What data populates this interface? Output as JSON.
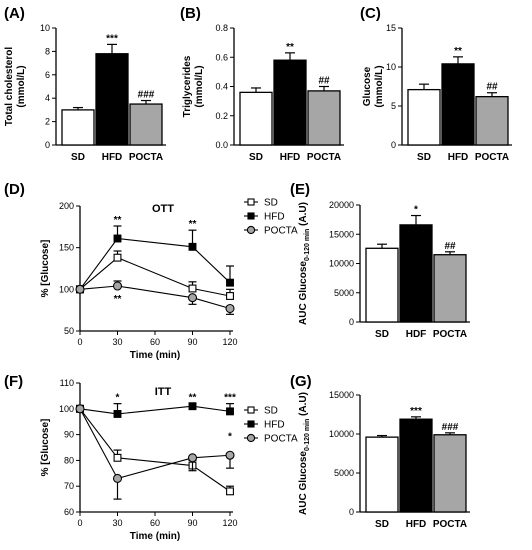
{
  "colors": {
    "SD": "#ffffff",
    "HFD": "#000000",
    "POCTA": "#a6a6a6",
    "axis": "#000000"
  },
  "chart_data": [
    {
      "panel": "(A)",
      "type": "bar",
      "ylabel": "Total cholesterol\n(mmol/L)",
      "categories": [
        "SD",
        "HFD",
        "POCTA"
      ],
      "values": [
        3.0,
        7.8,
        3.5
      ],
      "errors": [
        0.2,
        0.8,
        0.3
      ],
      "ylim": [
        0,
        10
      ],
      "yticks": [
        "0",
        "2",
        "4",
        "6",
        "8",
        "10"
      ],
      "significance": [
        "",
        "***",
        "###"
      ]
    },
    {
      "panel": "(B)",
      "type": "bar",
      "ylabel": "Triglycerides\n(mmol/L)",
      "categories": [
        "SD",
        "HFD",
        "POCTA"
      ],
      "values": [
        0.36,
        0.58,
        0.37
      ],
      "errors": [
        0.03,
        0.05,
        0.03
      ],
      "ylim": [
        0,
        0.8
      ],
      "yticks": [
        "0.0",
        "0.2",
        "0.4",
        "0.6",
        "0.8"
      ],
      "significance": [
        "",
        "**",
        "##"
      ]
    },
    {
      "panel": "(C)",
      "type": "bar",
      "ylabel": "Glucose\n(mmol/L)",
      "categories": [
        "SD",
        "HFD",
        "POCTA"
      ],
      "values": [
        7.1,
        10.4,
        6.2
      ],
      "errors": [
        0.7,
        0.9,
        0.5
      ],
      "ylim": [
        0,
        15
      ],
      "yticks": [
        "0",
        "5",
        "10",
        "15"
      ],
      "significance": [
        "",
        "**",
        "##"
      ]
    },
    {
      "panel": "(D)",
      "type": "line",
      "title": "OTT",
      "xlabel": "Time (min)",
      "ylabel": "% [Glucose]",
      "x": [
        0,
        30,
        90,
        120
      ],
      "xlim": [
        0,
        120
      ],
      "xticks": [
        "0",
        "30",
        "60",
        "90",
        "120"
      ],
      "ylim": [
        50,
        200
      ],
      "yticks": [
        "50",
        "100",
        "150",
        "200"
      ],
      "series": [
        {
          "name": "SD",
          "values": [
            100,
            138,
            101,
            92
          ],
          "errors": [
            0,
            8,
            8,
            8
          ]
        },
        {
          "name": "HFD",
          "values": [
            100,
            161,
            151,
            108
          ],
          "errors": [
            0,
            15,
            20,
            20
          ]
        },
        {
          "name": "POCTA",
          "values": [
            100,
            104,
            90,
            77
          ],
          "errors": [
            0,
            6,
            8,
            7
          ]
        }
      ],
      "annotations": [
        {
          "x": 30,
          "text": "**",
          "pos": "above"
        },
        {
          "x": 30,
          "text": "**",
          "pos": "below"
        },
        {
          "x": 90,
          "text": "**",
          "pos": "above"
        }
      ]
    },
    {
      "panel": "(E)",
      "type": "bar",
      "ylabel": "AUC Glucose0-120 min (A.U)",
      "ylabel_main": "AUC Glucose",
      "ylabel_sub": "0-120 min",
      "ylabel_unit": " (A.U)",
      "categories": [
        "SD",
        "HDF",
        "POCTA"
      ],
      "values": [
        12600,
        16600,
        11500
      ],
      "errors": [
        700,
        1600,
        500
      ],
      "ylim": [
        0,
        20000
      ],
      "yticks": [
        "0",
        "5000",
        "10000",
        "15000",
        "20000"
      ],
      "significance": [
        "",
        "*",
        "##"
      ]
    },
    {
      "panel": "(F)",
      "type": "line",
      "title": "ITT",
      "xlabel": "Time (min)",
      "ylabel": "% [Glucose]",
      "x": [
        0,
        30,
        90,
        120
      ],
      "xlim": [
        0,
        120
      ],
      "xticks": [
        "0",
        "30",
        "60",
        "90",
        "120"
      ],
      "ylim": [
        60,
        110
      ],
      "yticks": [
        "60",
        "70",
        "80",
        "90",
        "100",
        "110"
      ],
      "series": [
        {
          "name": "SD",
          "values": [
            100,
            81,
            78,
            68
          ],
          "errors": [
            0,
            3,
            2,
            2
          ]
        },
        {
          "name": "HFD",
          "values": [
            100,
            98,
            101,
            99
          ],
          "errors": [
            0,
            4,
            1,
            3
          ]
        },
        {
          "name": "POCTA",
          "values": [
            100,
            73,
            81,
            82
          ],
          "errors": [
            0,
            8,
            5,
            5
          ]
        }
      ],
      "annotations": [
        {
          "x": 30,
          "text": "*",
          "pos": "above"
        },
        {
          "x": 90,
          "text": "**",
          "pos": "above"
        },
        {
          "x": 120,
          "text": "***",
          "pos": "above"
        },
        {
          "x": 120,
          "text": "*",
          "pos": "mid"
        }
      ]
    },
    {
      "panel": "(G)",
      "type": "bar",
      "ylabel": "AUC Glucose0-120 min (A.U)",
      "ylabel_main": "AUC Glucose",
      "ylabel_sub": "0-120 min",
      "ylabel_unit": " (A.U)",
      "categories": [
        "SD",
        "HFD",
        "POCTA"
      ],
      "values": [
        9600,
        11900,
        9900
      ],
      "errors": [
        200,
        300,
        250
      ],
      "ylim": [
        0,
        15000
      ],
      "yticks": [
        "0",
        "5000",
        "10000",
        "15000"
      ],
      "significance": [
        "",
        "***",
        "###"
      ]
    }
  ]
}
